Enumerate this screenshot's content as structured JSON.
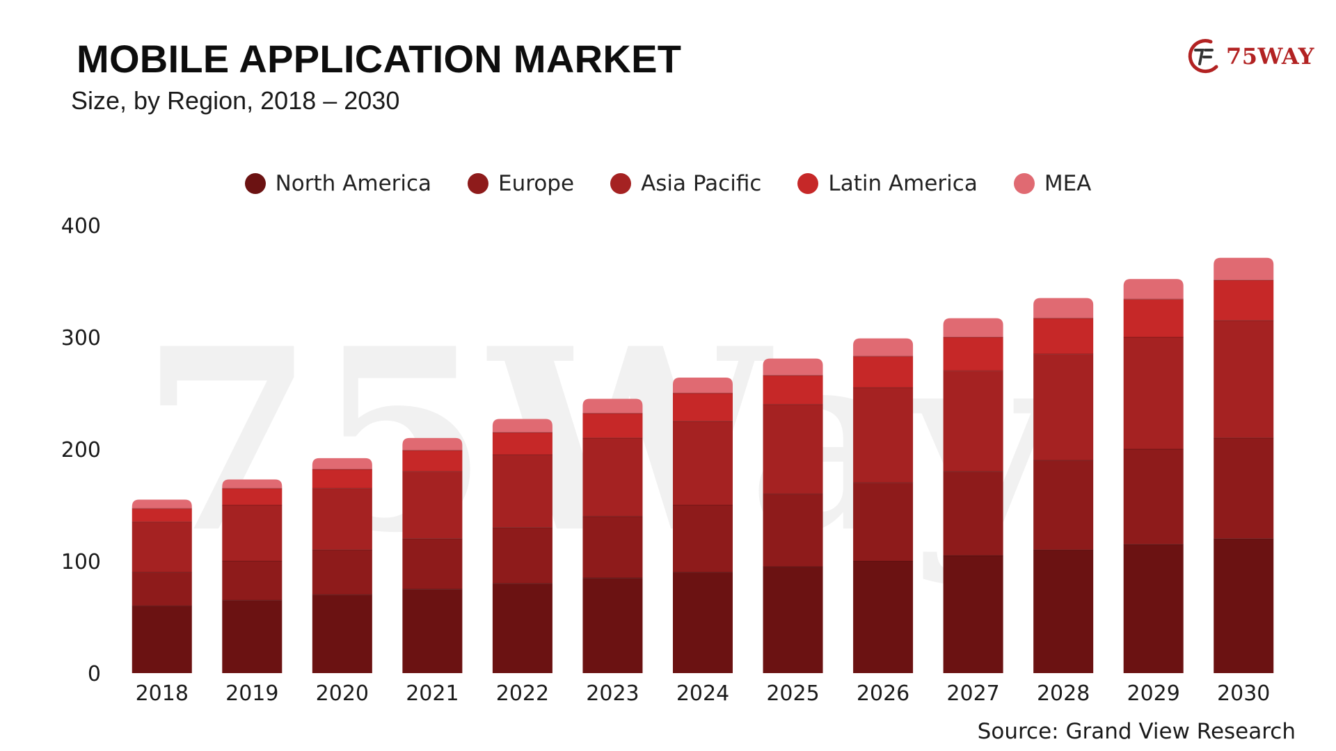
{
  "header": {
    "title": "MOBILE APPLICATION MARKET",
    "subtitle": "Size, by Region, 2018 – 2030"
  },
  "logo": {
    "text": "75WAY",
    "icon": "75way-logo-icon",
    "color": "#b22222"
  },
  "watermark": {
    "text": "75Way"
  },
  "footer": {
    "source": "Source: Grand View Research"
  },
  "colors": {
    "north_america": "#6b1212",
    "europe": "#8e1b1b",
    "asia_pacific": "#a52222",
    "latin_america": "#c62828",
    "mea": "#e06a72"
  },
  "chart_data": {
    "type": "bar",
    "stacked": true,
    "title": "MOBILE APPLICATION MARKET",
    "subtitle": "Size, by Region, 2018 – 2030",
    "xlabel": "",
    "ylabel": "",
    "ylim": [
      0,
      400
    ],
    "yticks": [
      0,
      100,
      200,
      300,
      400
    ],
    "legend_position": "top-center",
    "grid": false,
    "categories": [
      "2018",
      "2019",
      "2020",
      "2021",
      "2022",
      "2023",
      "2024",
      "2025",
      "2026",
      "2027",
      "2028",
      "2029",
      "2030"
    ],
    "series": [
      {
        "name": "North America",
        "color": "#6b1212",
        "values": [
          60,
          65,
          70,
          75,
          80,
          85,
          90,
          95,
          100,
          105,
          110,
          115,
          120
        ]
      },
      {
        "name": "Europe",
        "color": "#8e1b1b",
        "values": [
          30,
          35,
          40,
          45,
          50,
          55,
          60,
          65,
          70,
          75,
          80,
          85,
          90
        ]
      },
      {
        "name": "Asia Pacific",
        "color": "#a52222",
        "values": [
          45,
          50,
          55,
          60,
          65,
          70,
          75,
          80,
          85,
          90,
          95,
          100,
          105
        ]
      },
      {
        "name": "Latin America",
        "color": "#c62828",
        "values": [
          12,
          15,
          17,
          19,
          20,
          22,
          25,
          26,
          28,
          30,
          32,
          34,
          36
        ]
      },
      {
        "name": "MEA",
        "color": "#e06a72",
        "values": [
          8,
          8,
          10,
          11,
          12,
          13,
          14,
          15,
          16,
          17,
          18,
          18,
          20
        ]
      }
    ]
  }
}
